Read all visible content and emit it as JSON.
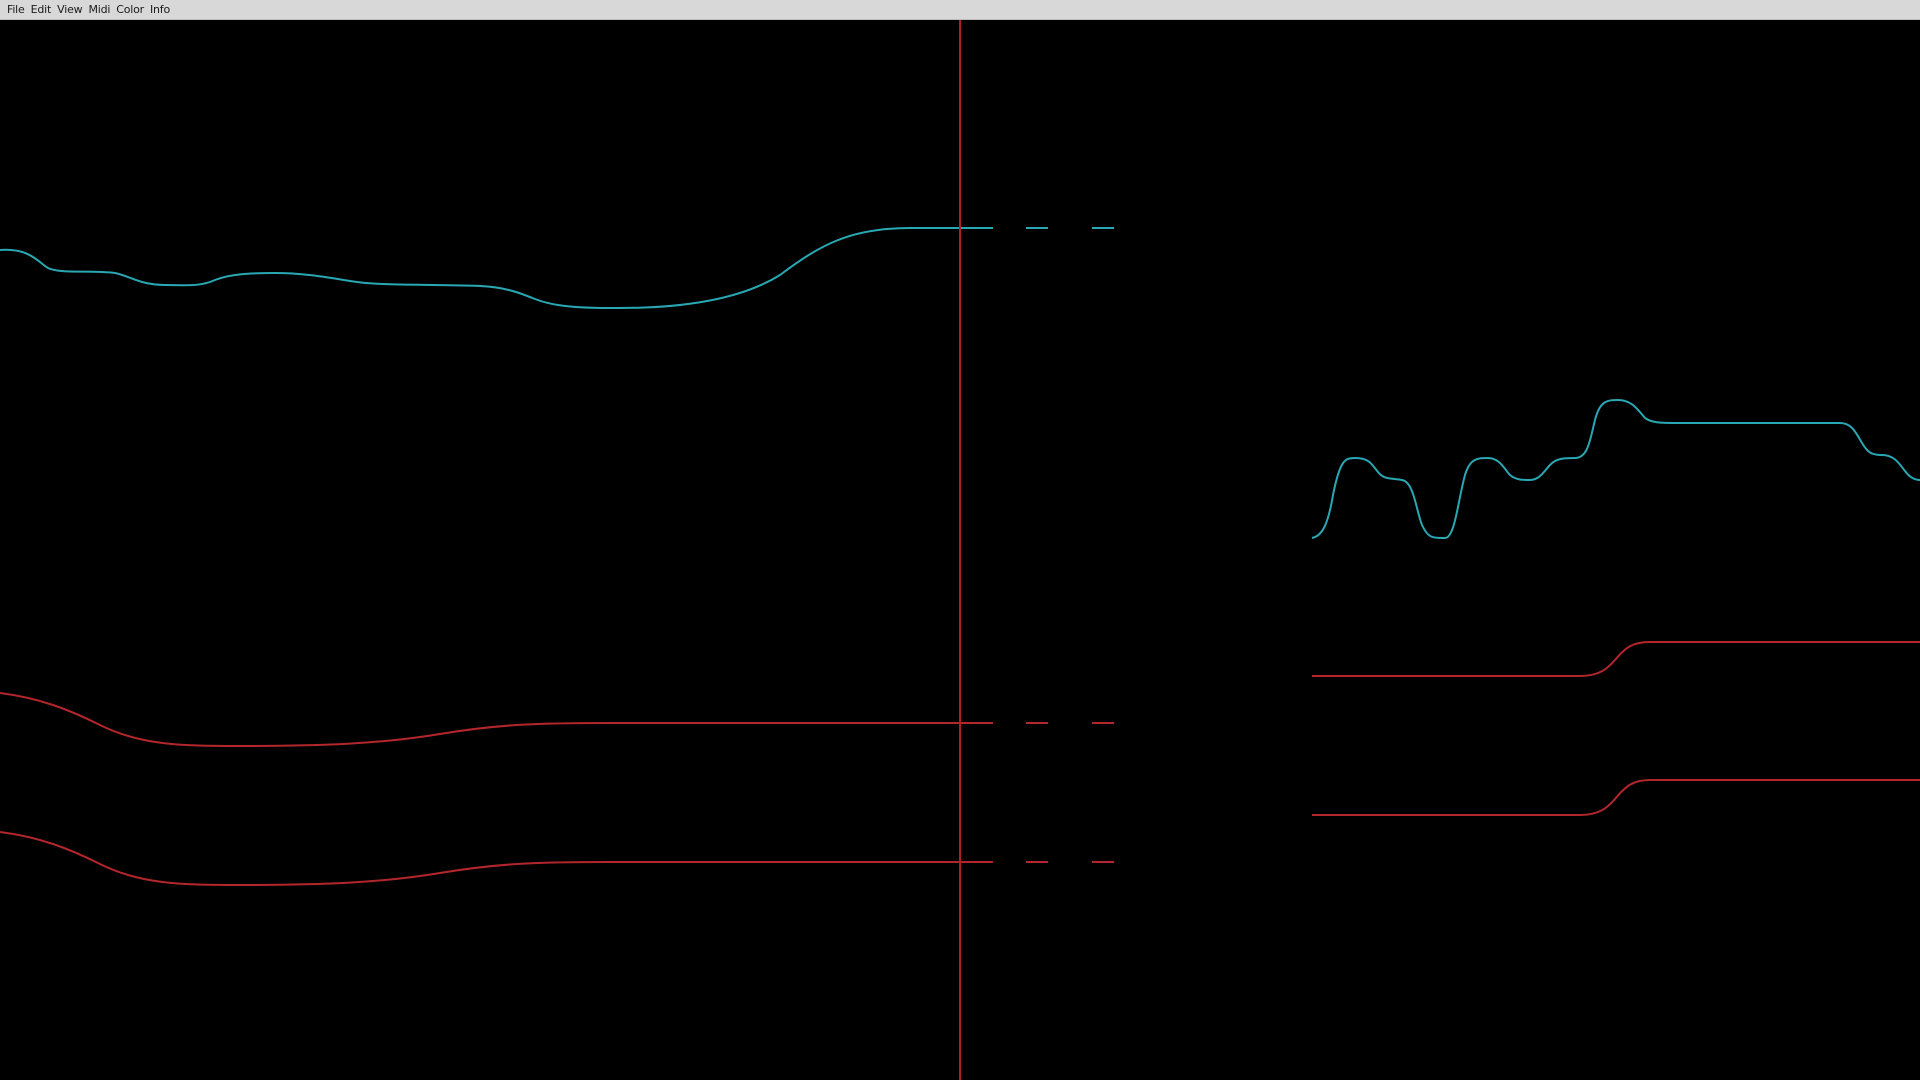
{
  "menubar": {
    "items": [
      {
        "label": "File"
      },
      {
        "label": "Edit"
      },
      {
        "label": "View"
      },
      {
        "label": "Midi"
      },
      {
        "label": "Color"
      },
      {
        "label": "Info"
      }
    ]
  },
  "colors": {
    "background": "#000000",
    "menubar": "#d8d8d8",
    "cyan_curve": "#29a7b3",
    "red_curve": "#b3262b",
    "playhead": "#b01e24"
  }
}
